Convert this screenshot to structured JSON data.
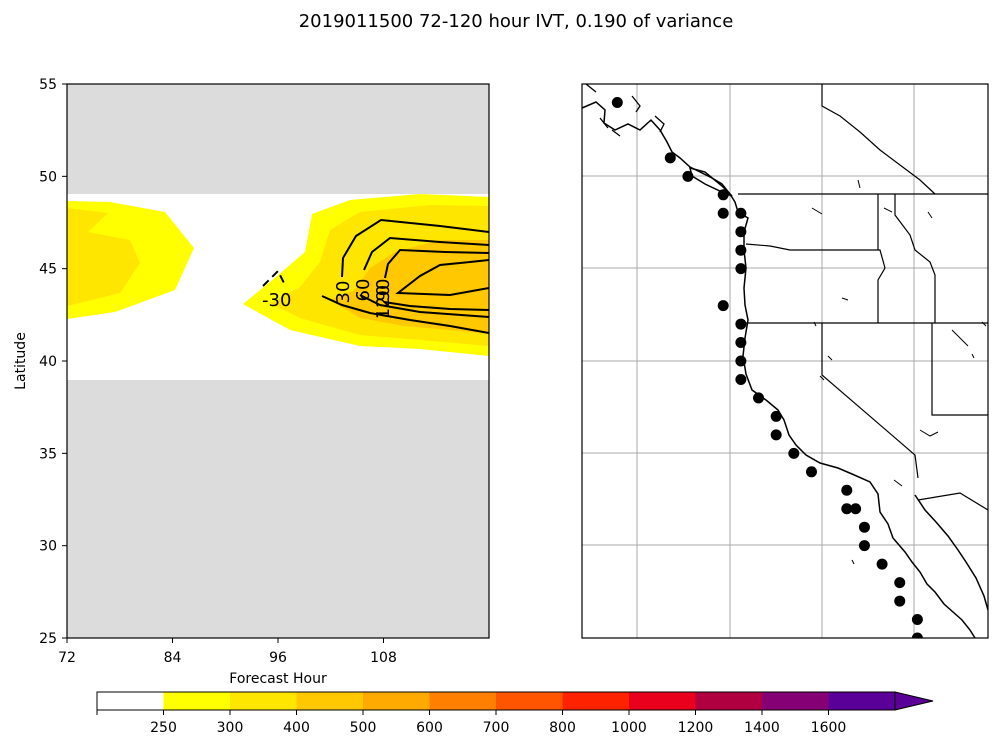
{
  "figure": {
    "title": "2019011500 72-120 hour IVT, 0.190 of variance"
  },
  "chart_data": [
    {
      "type": "contour",
      "panel": "hovmoller",
      "xlabel": "Forecast Hour",
      "ylabel": "Latitude",
      "xlim": [
        72,
        120
      ],
      "ylim": [
        25,
        55
      ],
      "xticks": [
        72,
        84,
        96,
        108
      ],
      "yticks": [
        25,
        30,
        35,
        40,
        45,
        50,
        55
      ],
      "masked_lat_ranges": [
        [
          25,
          39
        ],
        [
          49,
          55
        ]
      ],
      "filled_levels": [
        {
          "from": 250,
          "to": 300,
          "color": "#ffff00"
        },
        {
          "from": 300,
          "to": 400,
          "color": "#ffe600"
        },
        {
          "from": 400,
          "to": 500,
          "color": "#ffc800"
        }
      ],
      "contour_labels": [
        "-30",
        "30",
        "60",
        "90",
        "120"
      ]
    },
    {
      "type": "map",
      "panel": "west-coast-map",
      "region": "North American west coast",
      "lon_range": [
        -137,
        -114
      ],
      "lat_range": [
        25,
        55
      ],
      "marker_count": 29,
      "markers": [
        [
          -135,
          54
        ],
        [
          -132,
          51
        ],
        [
          -131,
          50
        ],
        [
          -129,
          48
        ],
        [
          -129,
          49
        ],
        [
          -128,
          48
        ],
        [
          -128,
          47
        ],
        [
          -128,
          46
        ],
        [
          -128,
          45
        ],
        [
          -129,
          43
        ],
        [
          -128,
          42
        ],
        [
          -128,
          41
        ],
        [
          -128,
          40
        ],
        [
          -128,
          39
        ],
        [
          -127,
          38
        ],
        [
          -126,
          37
        ],
        [
          -126,
          36
        ],
        [
          -125,
          35
        ],
        [
          -124,
          34
        ],
        [
          -122,
          33
        ],
        [
          -122,
          32
        ],
        [
          -121,
          31
        ],
        [
          -121,
          30
        ],
        [
          -120,
          29
        ],
        [
          -119,
          28
        ],
        [
          -119,
          27
        ],
        [
          -118,
          26
        ],
        [
          -118,
          25
        ],
        [
          -121.5,
          32
        ]
      ]
    },
    {
      "type": "colorbar",
      "boundaries": [
        200,
        250,
        300,
        400,
        500,
        600,
        700,
        800,
        1000,
        1200,
        1400,
        1600
      ],
      "tick_labels": [
        "250",
        "300",
        "400",
        "500",
        "600",
        "700",
        "800",
        "1000",
        "1200",
        "1400",
        "1600"
      ],
      "colors": [
        "#ffffff",
        "#ffff00",
        "#ffe600",
        "#ffc800",
        "#ffaa00",
        "#ff8000",
        "#ff5500",
        "#ff2200",
        "#e8001c",
        "#b00040",
        "#850075",
        "#5a0099"
      ],
      "extend": "max"
    }
  ]
}
